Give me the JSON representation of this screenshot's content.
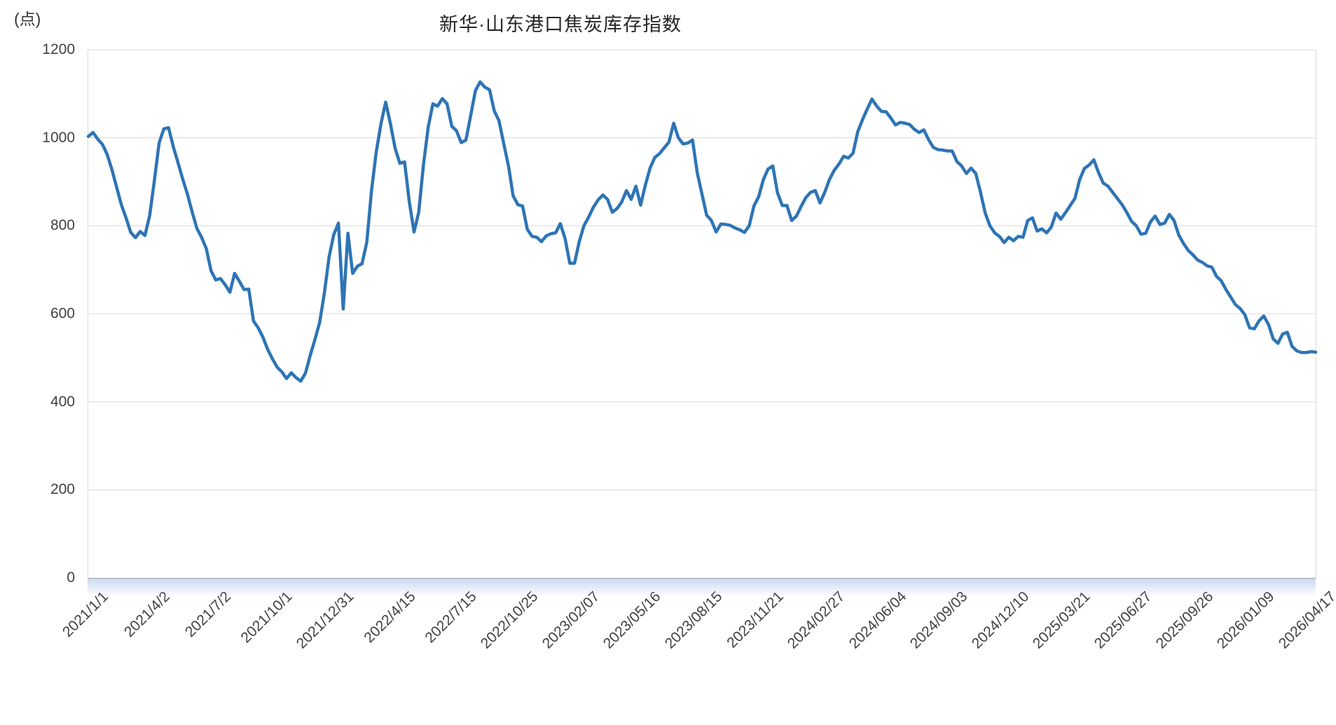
{
  "chart_data": {
    "type": "line",
    "title": "新华·山东港口焦炭库存指数",
    "unit_label": "(点)",
    "ylabel": "(点)",
    "xlabel": "",
    "ylim": [
      0,
      1200
    ],
    "y_ticks": [
      0,
      200,
      400,
      600,
      800,
      1000,
      1200
    ],
    "grid": "horizontal",
    "legend_position": "none",
    "line_color": "#2e74b5",
    "grid_color": "#d9d9d9",
    "axis_color": "#a6a6a6",
    "tick_text_color": "#404040",
    "x_tick_labels": [
      "2021/1/1",
      "2021/4/2",
      "2021/7/2",
      "2021/10/1",
      "2021/12/31",
      "2022/4/15",
      "2022/7/15",
      "2022/10/25",
      "2023/02/07",
      "2023/05/16",
      "2023/08/15",
      "2023/11/21",
      "2024/02/27",
      "2024/06/04",
      "2024/09/03",
      "2024/12/10",
      "2025/03/21",
      "2025/06/27",
      "2025/09/26",
      "2026/01/09",
      "2026/04/17"
    ],
    "x_label_every_n_points": 13,
    "series": [
      {
        "name": "新华·山东港口焦炭库存指数",
        "values": [
          1003,
          1012,
          997,
          985,
          962,
          928,
          888,
          848,
          818,
          785,
          773,
          787,
          778,
          823,
          902,
          988,
          1020,
          1023,
          980,
          944,
          906,
          872,
          832,
          794,
          774,
          748,
          698,
          677,
          680,
          666,
          649,
          692,
          674,
          655,
          656,
          584,
          568,
          547,
          519,
          498,
          479,
          468,
          453,
          466,
          455,
          447,
          465,
          505,
          541,
          580,
          646,
          729,
          780,
          806,
          611,
          783,
          692,
          708,
          714,
          763,
          880,
          967,
          1032,
          1081,
          1032,
          976,
          942,
          945,
          855,
          786,
          831,
          938,
          1024,
          1077,
          1072,
          1089,
          1077,
          1026,
          1016,
          989,
          995,
          1050,
          1107,
          1127,
          1115,
          1109,
          1061,
          1039,
          987,
          937,
          868,
          848,
          845,
          792,
          776,
          774,
          764,
          777,
          782,
          784,
          805,
          771,
          715,
          715,
          764,
          800,
          820,
          842,
          859,
          870,
          860,
          831,
          839,
          854,
          880,
          860,
          890,
          847,
          892,
          931,
          955,
          964,
          977,
          990,
          1033,
          1000,
          986,
          988,
          995,
          920,
          872,
          824,
          812,
          786,
          804,
          803,
          801,
          795,
          791,
          785,
          800,
          845,
          866,
          905,
          929,
          936,
          875,
          846,
          846,
          812,
          822,
          844,
          864,
          876,
          880,
          852,
          876,
          905,
          926,
          940,
          958,
          954,
          965,
          1014,
          1041,
          1065,
          1088,
          1072,
          1060,
          1059,
          1045,
          1029,
          1035,
          1033,
          1030,
          1019,
          1012,
          1018,
          996,
          978,
          973,
          972,
          970,
          970,
          946,
          936,
          919,
          931,
          919,
          876,
          829,
          800,
          784,
          776,
          762,
          774,
          766,
          776,
          774,
          812,
          818,
          788,
          793,
          784,
          797,
          829,
          815,
          830,
          846,
          862,
          905,
          930,
          938,
          950,
          921,
          897,
          890,
          876,
          862,
          848,
          830,
          810,
          800,
          781,
          783,
          809,
          822,
          803,
          806,
          826,
          812,
          779,
          760,
          744,
          734,
          722,
          717,
          709,
          706,
          685,
          675,
          655,
          638,
          621,
          612,
          598,
          568,
          566,
          584,
          595,
          576,
          543,
          533,
          554,
          558,
          526,
          516,
          512,
          512,
          514,
          513
        ]
      }
    ]
  }
}
